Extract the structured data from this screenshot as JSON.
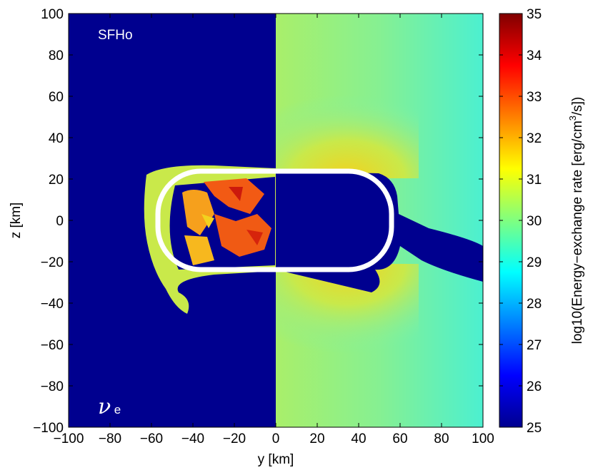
{
  "chart_data": {
    "type": "heatmap",
    "title": "",
    "xlabel": "y [km]",
    "ylabel": "z [km]",
    "xlim": [
      -100,
      100
    ],
    "ylim": [
      -100,
      100
    ],
    "xticks": [
      "−100",
      "−80",
      "−60",
      "−40",
      "−20",
      "0",
      "20",
      "40",
      "60",
      "80",
      "100"
    ],
    "yticks": [
      "100",
      "80",
      "60",
      "40",
      "20",
      "0",
      "−20",
      "−40",
      "−60",
      "−80",
      "−100"
    ],
    "grid": false,
    "annotations": {
      "model": "SFHo",
      "species_symbol": "ν",
      "species_subscript": "e"
    },
    "colorbar": {
      "label_prefix": "log10(Energy−exchange rate [erg/cm",
      "label_sup": "3",
      "label_suffix": "/s])",
      "min": 25,
      "max": 35,
      "ticks": [
        "35",
        "34",
        "33",
        "32",
        "31",
        "30",
        "29",
        "28",
        "27",
        "26",
        "25"
      ],
      "colormap": "jet"
    },
    "regions": {
      "left_half_background_log10": 25,
      "right_half_background_log10": 29.8,
      "near_surface_right_peak_log10": 31.5,
      "left_inner_spots_log10": 32.5,
      "dark_wedge_right_log10": 25
    },
    "contour": {
      "color": "#ffffff",
      "y_min": -57,
      "y_max": 55,
      "z_min": -24,
      "z_max": 24
    }
  }
}
